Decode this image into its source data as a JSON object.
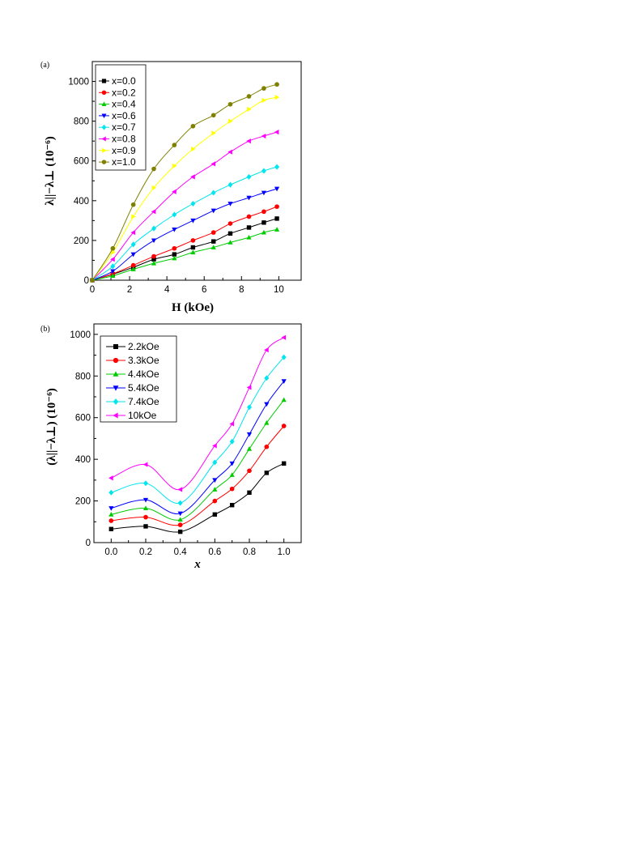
{
  "chart_data": [
    {
      "type": "line",
      "panel_label": "(a)",
      "xlabel": "H (kOe)",
      "ylabel": "λ||−λ⊥ (10⁻⁶)",
      "xlim": [
        0,
        11.2
      ],
      "ylim": [
        0,
        1100
      ],
      "x_ticks": [
        0,
        2,
        4,
        6,
        8,
        10
      ],
      "y_ticks": [
        0,
        200,
        400,
        600,
        800,
        1000
      ],
      "legend_position": "top-left",
      "x": [
        0,
        1.1,
        2.2,
        3.3,
        4.4,
        5.4,
        6.5,
        7.4,
        8.4,
        9.2,
        9.9
      ],
      "series": [
        {
          "name": "x=0.0",
          "color": "#000000",
          "marker": "square",
          "values": [
            0,
            30,
            65,
            105,
            130,
            165,
            195,
            235,
            265,
            290,
            310
          ]
        },
        {
          "name": "x=0.2",
          "color": "#ff0000",
          "marker": "circle",
          "values": [
            0,
            32,
            75,
            120,
            160,
            200,
            240,
            285,
            320,
            345,
            370
          ]
        },
        {
          "name": "x=0.4",
          "color": "#00cc00",
          "marker": "triangle-up",
          "values": [
            0,
            22,
            55,
            85,
            110,
            140,
            165,
            190,
            215,
            240,
            255
          ]
        },
        {
          "name": "x=0.6",
          "color": "#0000ff",
          "marker": "triangle-down",
          "values": [
            0,
            45,
            130,
            200,
            255,
            300,
            350,
            385,
            415,
            440,
            460
          ]
        },
        {
          "name": "x=0.7",
          "color": "#00e5ee",
          "marker": "diamond",
          "values": [
            0,
            70,
            180,
            260,
            330,
            385,
            440,
            480,
            520,
            550,
            570
          ]
        },
        {
          "name": "x=0.8",
          "color": "#ff00ff",
          "marker": "triangle-left",
          "values": [
            0,
            105,
            240,
            345,
            445,
            520,
            585,
            645,
            700,
            725,
            745
          ]
        },
        {
          "name": "x=0.9",
          "color": "#ffff00",
          "marker": "triangle-right",
          "values": [
            0,
            140,
            320,
            465,
            575,
            660,
            740,
            800,
            860,
            905,
            920
          ]
        },
        {
          "name": "x=1.0",
          "color": "#808000",
          "marker": "circle",
          "values": [
            0,
            160,
            380,
            560,
            680,
            775,
            830,
            885,
            925,
            965,
            985
          ]
        }
      ]
    },
    {
      "type": "line",
      "panel_label": "(b)",
      "xlabel": "x",
      "ylabel": "(λ||−λ⊥) (10⁻⁶)",
      "xlim": [
        -0.1,
        1.1
      ],
      "ylim": [
        0,
        1050
      ],
      "x_ticks": [
        0.0,
        0.2,
        0.4,
        0.6,
        0.8,
        1.0
      ],
      "y_ticks": [
        0,
        200,
        400,
        600,
        800,
        1000
      ],
      "legend_position": "top-left",
      "x": [
        0.0,
        0.2,
        0.4,
        0.6,
        0.7,
        0.8,
        0.9,
        1.0
      ],
      "series": [
        {
          "name": "2.2kOe",
          "color": "#000000",
          "marker": "square",
          "values": [
            65,
            78,
            52,
            135,
            180,
            240,
            335,
            380
          ]
        },
        {
          "name": "3.3kOe",
          "color": "#ff0000",
          "marker": "circle",
          "values": [
            105,
            122,
            85,
            200,
            258,
            345,
            460,
            560
          ]
        },
        {
          "name": "4.4kOe",
          "color": "#00cc00",
          "marker": "triangle-up",
          "values": [
            135,
            165,
            110,
            255,
            325,
            450,
            575,
            685
          ]
        },
        {
          "name": "5.4kOe",
          "color": "#0000ff",
          "marker": "triangle-down",
          "values": [
            165,
            205,
            140,
            300,
            380,
            520,
            665,
            775
          ]
        },
        {
          "name": "7.4kOe",
          "color": "#00e5ee",
          "marker": "diamond",
          "values": [
            240,
            285,
            190,
            385,
            485,
            650,
            790,
            890
          ]
        },
        {
          "name": "10kOe",
          "color": "#ff00ff",
          "marker": "triangle-left",
          "values": [
            310,
            375,
            255,
            465,
            570,
            745,
            925,
            985
          ]
        }
      ]
    }
  ]
}
